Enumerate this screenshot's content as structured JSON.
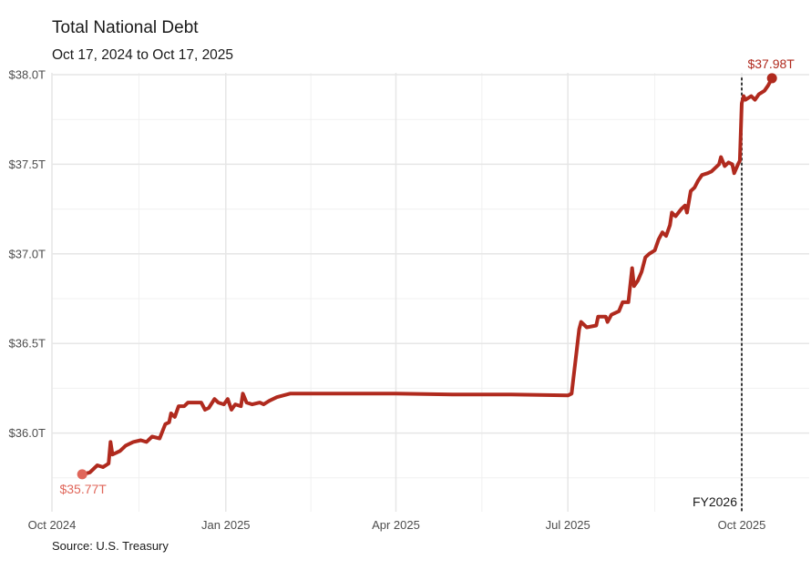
{
  "title": "Total National Debt",
  "subtitle": "Oct 17, 2024 to Oct 17, 2025",
  "source": "Source: U.S. Treasury",
  "colors": {
    "line": "#b02a1e",
    "start_point": "#e0665a",
    "end_point": "#b02a1e",
    "grid": "#e6e6e6",
    "marker": "#333333"
  },
  "chart_data": {
    "type": "line",
    "title": "Total National Debt",
    "subtitle": "Oct 17, 2024 to Oct 17, 2025",
    "xlabel": "",
    "ylabel": "",
    "x_ticks": [
      {
        "date": "2024-10-01",
        "label": "Oct 2024"
      },
      {
        "date": "2025-01-01",
        "label": "Jan 2025"
      },
      {
        "date": "2025-04-01",
        "label": "Apr 2025"
      },
      {
        "date": "2025-07-01",
        "label": "Jul 2025"
      },
      {
        "date": "2025-10-01",
        "label": "Oct 2025"
      }
    ],
    "y_ticks": [
      {
        "value": 36.0,
        "label": "$36.0T"
      },
      {
        "value": 36.5,
        "label": "$36.5T"
      },
      {
        "value": 37.0,
        "label": "$37.0T"
      },
      {
        "value": 37.5,
        "label": "$37.5T"
      },
      {
        "value": 38.0,
        "label": "$38.0T"
      }
    ],
    "xlim": [
      "2024-10-01",
      "2025-10-26"
    ],
    "ylim": [
      35.74,
      38.02
    ],
    "grid": true,
    "units": "trillions USD",
    "series": [
      {
        "points": [
          [
            "2024-10-17",
            35.77
          ],
          [
            "2024-10-21",
            35.78
          ],
          [
            "2024-10-25",
            35.82
          ],
          [
            "2024-10-28",
            35.81
          ],
          [
            "2024-10-31",
            35.83
          ],
          [
            "2024-11-01",
            35.95
          ],
          [
            "2024-11-02",
            35.88
          ],
          [
            "2024-11-06",
            35.9
          ],
          [
            "2024-11-09",
            35.93
          ],
          [
            "2024-11-13",
            35.95
          ],
          [
            "2024-11-17",
            35.96
          ],
          [
            "2024-11-20",
            35.95
          ],
          [
            "2024-11-23",
            35.98
          ],
          [
            "2024-11-27",
            35.97
          ],
          [
            "2024-11-30",
            36.05
          ],
          [
            "2024-12-02",
            36.06
          ],
          [
            "2024-12-03",
            36.11
          ],
          [
            "2024-12-05",
            36.09
          ],
          [
            "2024-12-07",
            36.15
          ],
          [
            "2024-12-10",
            36.15
          ],
          [
            "2024-12-12",
            36.17
          ],
          [
            "2024-12-16",
            36.17
          ],
          [
            "2024-12-19",
            36.17
          ],
          [
            "2024-12-21",
            36.13
          ],
          [
            "2024-12-23",
            36.14
          ],
          [
            "2024-12-26",
            36.19
          ],
          [
            "2024-12-28",
            36.17
          ],
          [
            "2024-12-31",
            36.16
          ],
          [
            "2025-01-02",
            36.19
          ],
          [
            "2025-01-04",
            36.13
          ],
          [
            "2025-01-06",
            36.16
          ],
          [
            "2025-01-09",
            36.15
          ],
          [
            "2025-01-10",
            36.22
          ],
          [
            "2025-01-12",
            36.17
          ],
          [
            "2025-01-15",
            36.16
          ],
          [
            "2025-01-19",
            36.17
          ],
          [
            "2025-01-21",
            36.16
          ],
          [
            "2025-01-24",
            36.18
          ],
          [
            "2025-01-28",
            36.2
          ],
          [
            "2025-02-04",
            36.22
          ],
          [
            "2025-03-01",
            36.22
          ],
          [
            "2025-04-01",
            36.22
          ],
          [
            "2025-05-01",
            36.215
          ],
          [
            "2025-06-01",
            36.215
          ],
          [
            "2025-07-01",
            36.21
          ],
          [
            "2025-07-03",
            36.22
          ],
          [
            "2025-07-07",
            36.58
          ],
          [
            "2025-07-08",
            36.62
          ],
          [
            "2025-07-11",
            36.59
          ],
          [
            "2025-07-16",
            36.6
          ],
          [
            "2025-07-17",
            36.65
          ],
          [
            "2025-07-21",
            36.65
          ],
          [
            "2025-07-22",
            36.62
          ],
          [
            "2025-07-24",
            36.66
          ],
          [
            "2025-07-28",
            36.68
          ],
          [
            "2025-07-30",
            36.73
          ],
          [
            "2025-08-02",
            36.73
          ],
          [
            "2025-08-04",
            36.92
          ],
          [
            "2025-08-05",
            36.82
          ],
          [
            "2025-08-07",
            36.85
          ],
          [
            "2025-08-09",
            36.9
          ],
          [
            "2025-08-11",
            36.98
          ],
          [
            "2025-08-13",
            37.0
          ],
          [
            "2025-08-16",
            37.02
          ],
          [
            "2025-08-18",
            37.08
          ],
          [
            "2025-08-20",
            37.12
          ],
          [
            "2025-08-22",
            37.1
          ],
          [
            "2025-08-24",
            37.16
          ],
          [
            "2025-08-25",
            37.23
          ],
          [
            "2025-08-27",
            37.21
          ],
          [
            "2025-08-30",
            37.25
          ],
          [
            "2025-09-01",
            37.27
          ],
          [
            "2025-09-02",
            37.23
          ],
          [
            "2025-09-04",
            37.35
          ],
          [
            "2025-09-06",
            37.37
          ],
          [
            "2025-09-08",
            37.41
          ],
          [
            "2025-09-10",
            37.44
          ],
          [
            "2025-09-13",
            37.45
          ],
          [
            "2025-09-15",
            37.46
          ],
          [
            "2025-09-17",
            37.48
          ],
          [
            "2025-09-19",
            37.5
          ],
          [
            "2025-09-20",
            37.54
          ],
          [
            "2025-09-22",
            37.49
          ],
          [
            "2025-09-24",
            37.51
          ],
          [
            "2025-09-26",
            37.5
          ],
          [
            "2025-09-27",
            37.45
          ],
          [
            "2025-09-29",
            37.5
          ],
          [
            "2025-09-30",
            37.52
          ],
          [
            "2025-10-01",
            37.84
          ],
          [
            "2025-10-02",
            37.88
          ],
          [
            "2025-10-03",
            37.86
          ],
          [
            "2025-10-06",
            37.88
          ],
          [
            "2025-10-08",
            37.86
          ],
          [
            "2025-10-10",
            37.89
          ],
          [
            "2025-10-13",
            37.91
          ],
          [
            "2025-10-15",
            37.94
          ],
          [
            "2025-10-17",
            37.98
          ]
        ]
      }
    ],
    "annotations": [
      {
        "date": "2024-10-17",
        "value": 35.77,
        "label": "$35.77T"
      },
      {
        "date": "2025-10-17",
        "value": 37.98,
        "label": "$37.98T"
      },
      {
        "date": "2025-10-01",
        "label": "FY2026",
        "style": "dotted vertical line"
      }
    ]
  }
}
